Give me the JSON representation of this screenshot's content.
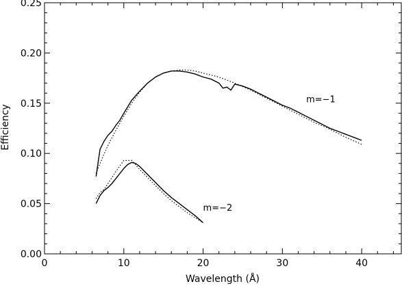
{
  "chart_data": {
    "type": "line",
    "xlabel": "Wavelength (Å)",
    "ylabel": "Efficiency",
    "xlim": [
      0,
      45
    ],
    "ylim": [
      0,
      0.25
    ],
    "xticks": [
      0,
      10,
      20,
      30,
      40
    ],
    "xtick_labels": [
      "0",
      "10",
      "20",
      "30",
      "40"
    ],
    "yticks": [
      0.0,
      0.05,
      0.1,
      0.15,
      0.2,
      0.25
    ],
    "ytick_labels": [
      "0.00",
      "0.05",
      "0.10",
      "0.15",
      "0.20",
      "0.25"
    ],
    "grid": false,
    "annotations": [
      {
        "text": "m=−1",
        "x": 33,
        "y": 0.151
      },
      {
        "text": "m=−2",
        "x": 20,
        "y": 0.043
      }
    ],
    "series": [
      {
        "style": "solid",
        "x": [
          6.5,
          7,
          7.5,
          8,
          8.5,
          9,
          9.5,
          10,
          11,
          12,
          13,
          14,
          15,
          16,
          17,
          18,
          19,
          20,
          21,
          22,
          22.5,
          23,
          23.5,
          24,
          25,
          26,
          27,
          28,
          29,
          30,
          31,
          32,
          33,
          34,
          35,
          36,
          37,
          38,
          39,
          40
        ],
        "y": [
          0.077,
          0.104,
          0.112,
          0.118,
          0.122,
          0.128,
          0.133,
          0.14,
          0.153,
          0.162,
          0.17,
          0.176,
          0.18,
          0.182,
          0.182,
          0.181,
          0.179,
          0.176,
          0.174,
          0.17,
          0.165,
          0.166,
          0.163,
          0.169,
          0.167,
          0.164,
          0.16,
          0.156,
          0.152,
          0.148,
          0.145,
          0.141,
          0.137,
          0.133,
          0.129,
          0.125,
          0.122,
          0.119,
          0.116,
          0.113
        ]
      },
      {
        "style": "dotted",
        "x": [
          6.5,
          7,
          8,
          9,
          10,
          11,
          12,
          13,
          14,
          15,
          16,
          17,
          18,
          19,
          20,
          22,
          24,
          26,
          28,
          30,
          32,
          34,
          36,
          38,
          40
        ],
        "y": [
          0.08,
          0.09,
          0.108,
          0.123,
          0.137,
          0.15,
          0.161,
          0.17,
          0.176,
          0.18,
          0.182,
          0.183,
          0.183,
          0.182,
          0.18,
          0.176,
          0.17,
          0.163,
          0.155,
          0.147,
          0.139,
          0.131,
          0.124,
          0.116,
          0.109
        ]
      },
      {
        "style": "solid",
        "x": [
          6.5,
          7,
          7.5,
          8,
          8.5,
          9,
          9.5,
          10,
          10.5,
          11,
          11.5,
          12,
          13,
          14,
          15,
          16,
          17,
          18,
          19,
          20
        ],
        "y": [
          0.05,
          0.058,
          0.063,
          0.066,
          0.07,
          0.075,
          0.08,
          0.085,
          0.089,
          0.091,
          0.09,
          0.087,
          0.079,
          0.071,
          0.063,
          0.056,
          0.05,
          0.044,
          0.038,
          0.031
        ]
      },
      {
        "style": "dotted",
        "x": [
          6.5,
          7,
          7.5,
          8,
          9,
          10,
          11,
          12,
          13,
          14,
          15,
          16,
          17,
          18,
          19,
          20
        ],
        "y": [
          0.055,
          0.061,
          0.064,
          0.07,
          0.082,
          0.093,
          0.093,
          0.084,
          0.076,
          0.068,
          0.06,
          0.053,
          0.047,
          0.041,
          0.036,
          0.031
        ]
      }
    ]
  }
}
